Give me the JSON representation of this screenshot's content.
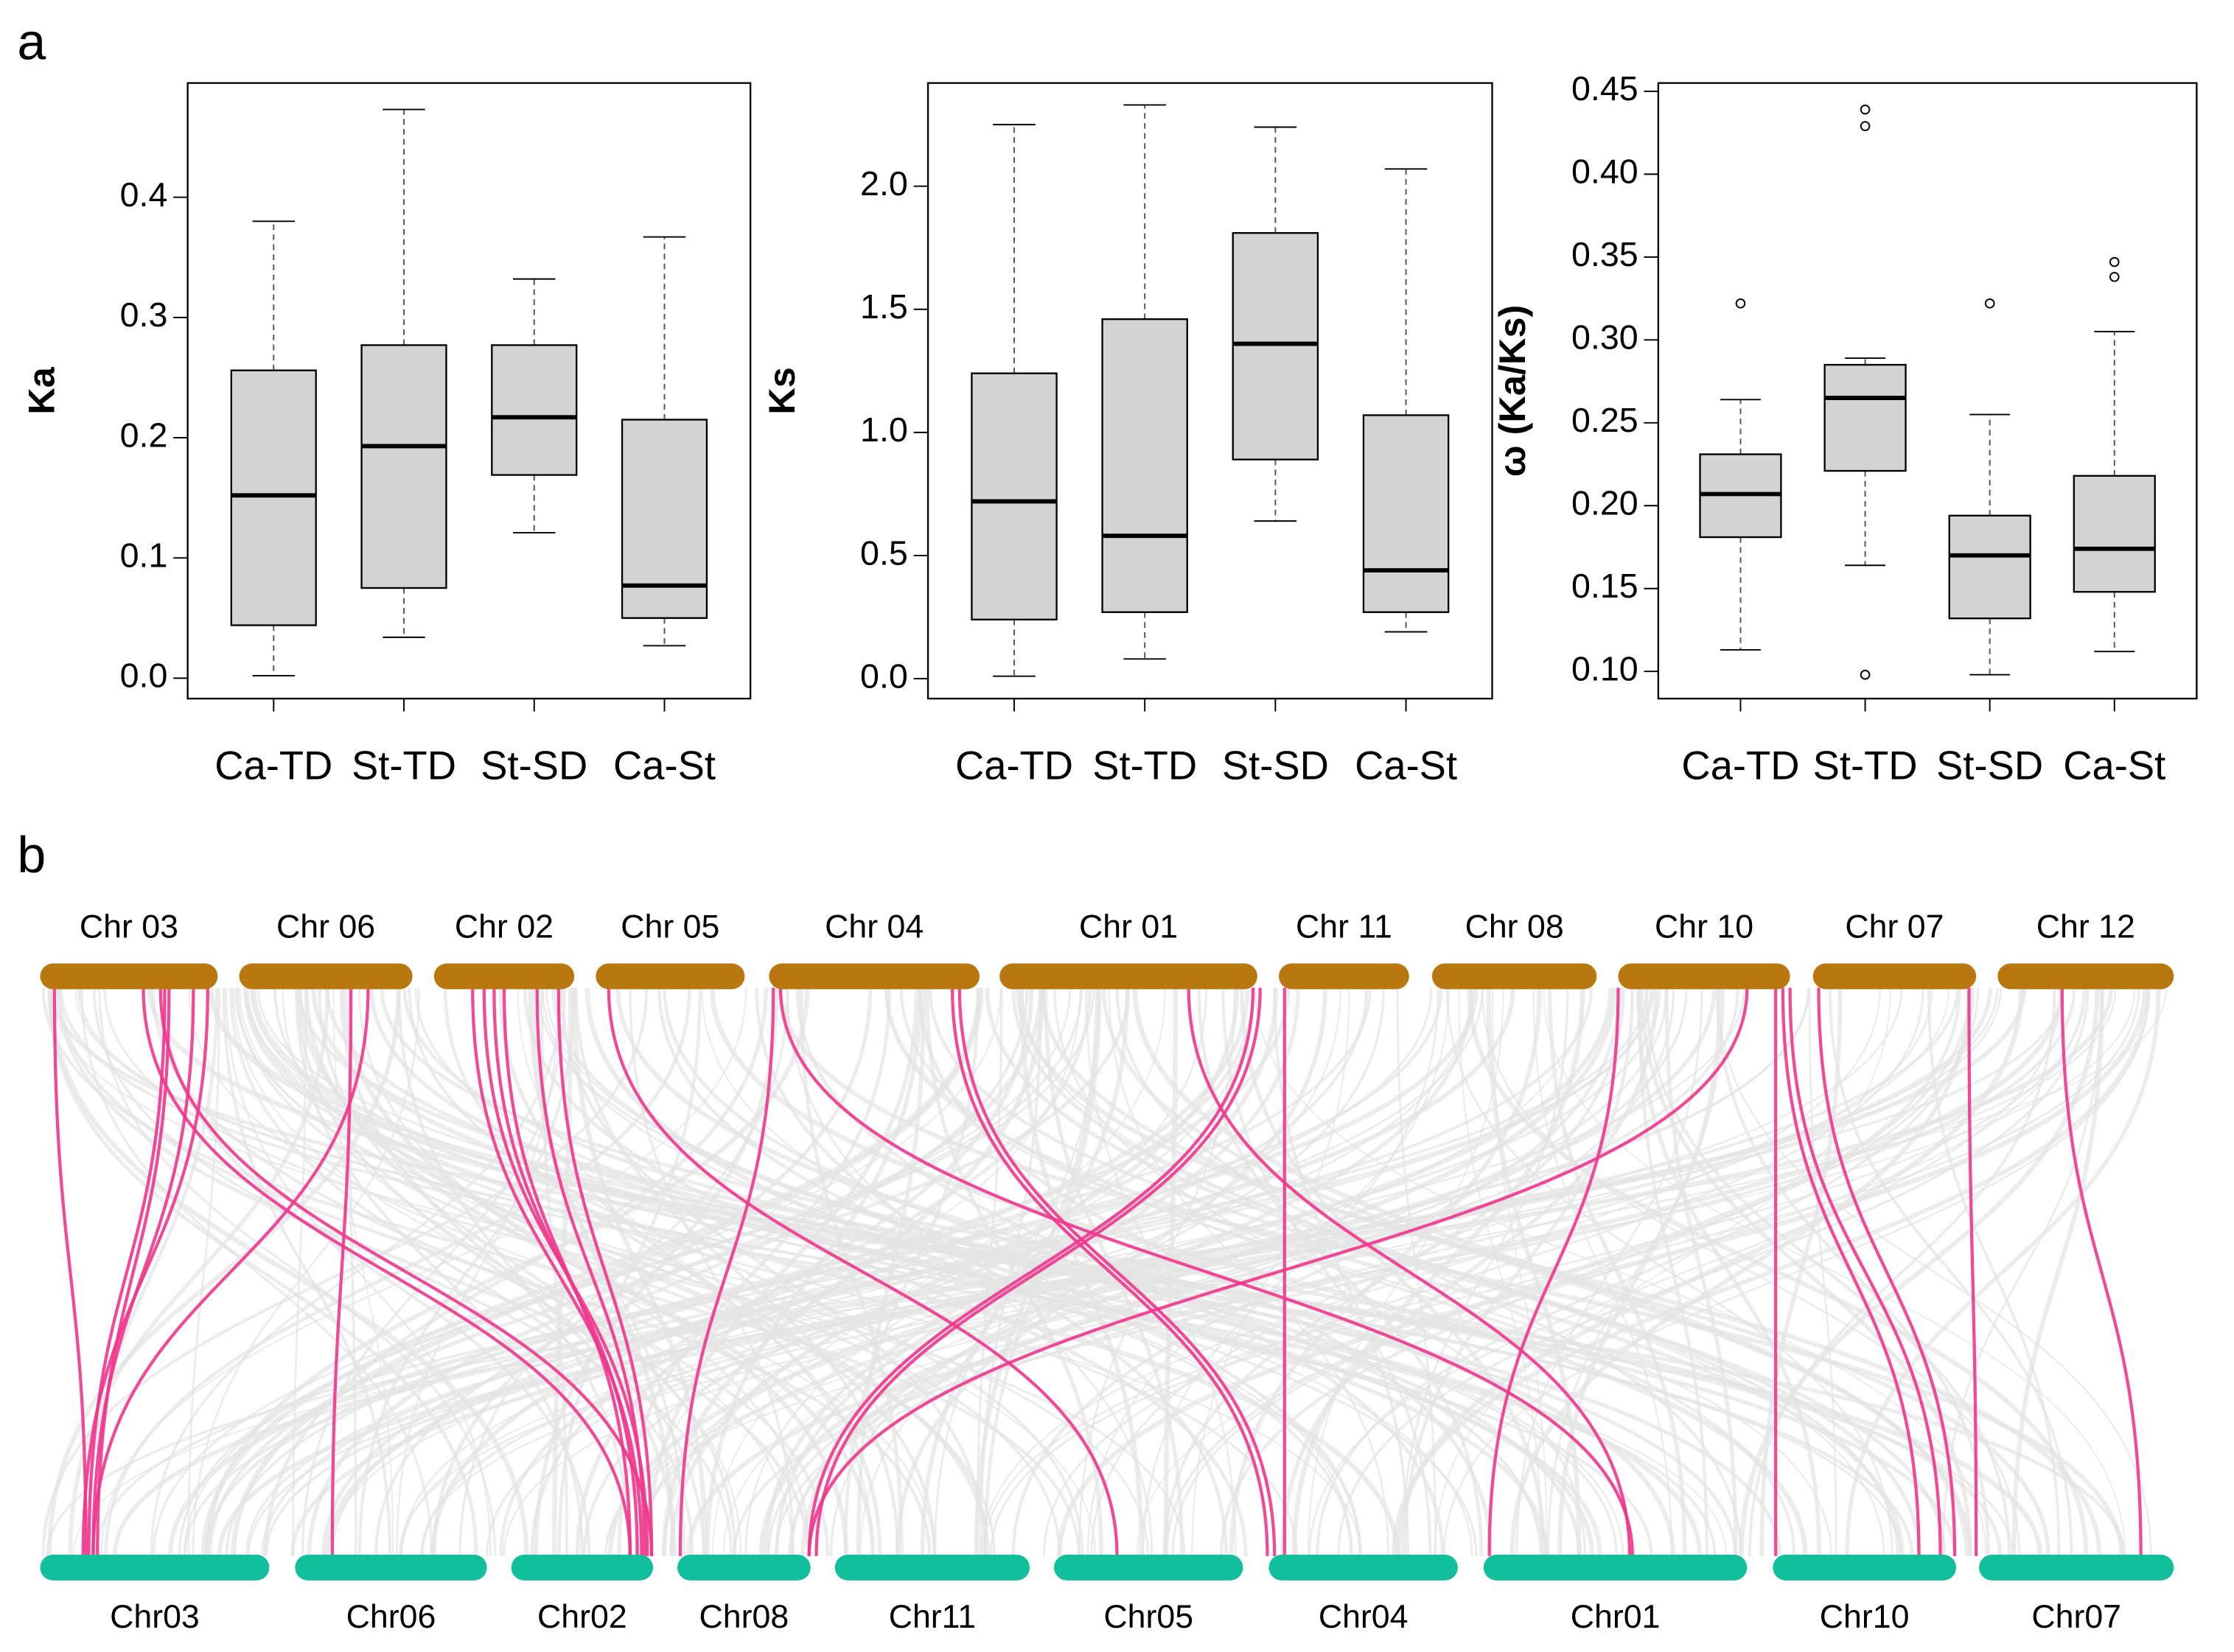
{
  "panel_labels": [
    "a",
    "b"
  ],
  "chart_data": [
    {
      "type": "box",
      "ylabel": "Ka",
      "categories": [
        "Ca-TD",
        "St-TD",
        "St-SD",
        "Ca-St"
      ],
      "ylim": [
        -0.017,
        0.495
      ],
      "yticks": [
        {
          "value": 0,
          "label": "0.0"
        },
        0.1,
        0.2,
        0.3,
        0.4
      ],
      "min": [
        0.002,
        0.034,
        0.121,
        0.027
      ],
      "q1": [
        0.044,
        0.075,
        0.169,
        0.05
      ],
      "median": [
        0.152,
        0.193,
        0.217,
        0.077
      ],
      "q3": [
        0.256,
        0.277,
        0.277,
        0.215
      ],
      "max": [
        0.38,
        0.473,
        0.332,
        0.367
      ],
      "outliers": [
        [],
        [],
        [],
        []
      ],
      "color": "#d3d3d3"
    },
    {
      "type": "box",
      "ylabel": "Ks",
      "categories": [
        "Ca-TD",
        "St-TD",
        "St-SD",
        "Ca-St"
      ],
      "ylim": [
        -0.081,
        2.419
      ],
      "yticks": [
        {
          "value": 0,
          "label": "0.0"
        },
        0.5,
        {
          "value": 1,
          "label": "1.0"
        },
        1.5,
        {
          "value": 2,
          "label": "2.0"
        }
      ],
      "min": [
        0.01,
        0.08,
        0.64,
        0.19
      ],
      "q1": [
        0.24,
        0.27,
        0.89,
        0.27
      ],
      "median": [
        0.72,
        0.58,
        1.36,
        0.44
      ],
      "q3": [
        1.24,
        1.46,
        1.81,
        1.07
      ],
      "max": [
        2.25,
        2.33,
        2.24,
        2.07
      ],
      "outliers": [
        [],
        [],
        [],
        []
      ],
      "color": "#d3d3d3"
    },
    {
      "type": "box",
      "ylabel": "ω (Ka/Ks)",
      "categories": [
        "Ca-TD",
        "St-TD",
        "St-SD",
        "Ca-St"
      ],
      "ylim": [
        0.0836,
        0.455
      ],
      "yticks": [
        {
          "value": 0.1,
          "label": "0.10"
        },
        0.15,
        {
          "value": 0.2,
          "label": "0.20"
        },
        0.25,
        {
          "value": 0.3,
          "label": "0.30"
        },
        0.35,
        {
          "value": 0.4,
          "label": "0.40"
        },
        0.45
      ],
      "min": [
        0.113,
        0.164,
        0.098,
        0.112
      ],
      "q1": [
        0.181,
        0.221,
        0.132,
        0.148
      ],
      "median": [
        0.207,
        0.265,
        0.17,
        0.174
      ],
      "q3": [
        0.231,
        0.285,
        0.194,
        0.218
      ],
      "max": [
        0.264,
        0.289,
        0.255,
        0.305
      ],
      "outliers": [
        [
          0.322
        ],
        [
          0.098,
          0.429,
          0.439
        ],
        [
          0.322
        ],
        [
          0.338,
          0.347
        ]
      ],
      "color": "#d3d3d3"
    }
  ],
  "synteny": {
    "top": [
      "Chr 03",
      "Chr 06",
      "Chr 02",
      "Chr 05",
      "Chr 04",
      "Chr 01",
      "Chr 11",
      "Chr 08",
      "Chr 10",
      "Chr 07",
      "Chr 12"
    ],
    "bottom": [
      "Chr03",
      "Chr06",
      "Chr02",
      "Chr08",
      "Chr11",
      "Chr05",
      "Chr04",
      "Chr01",
      "Chr10",
      "Chr07"
    ],
    "top_color": "#b8780f",
    "bottom_color": "#12bf9c",
    "link_color": "#f0358c",
    "background_color": "#e4e4e4"
  }
}
